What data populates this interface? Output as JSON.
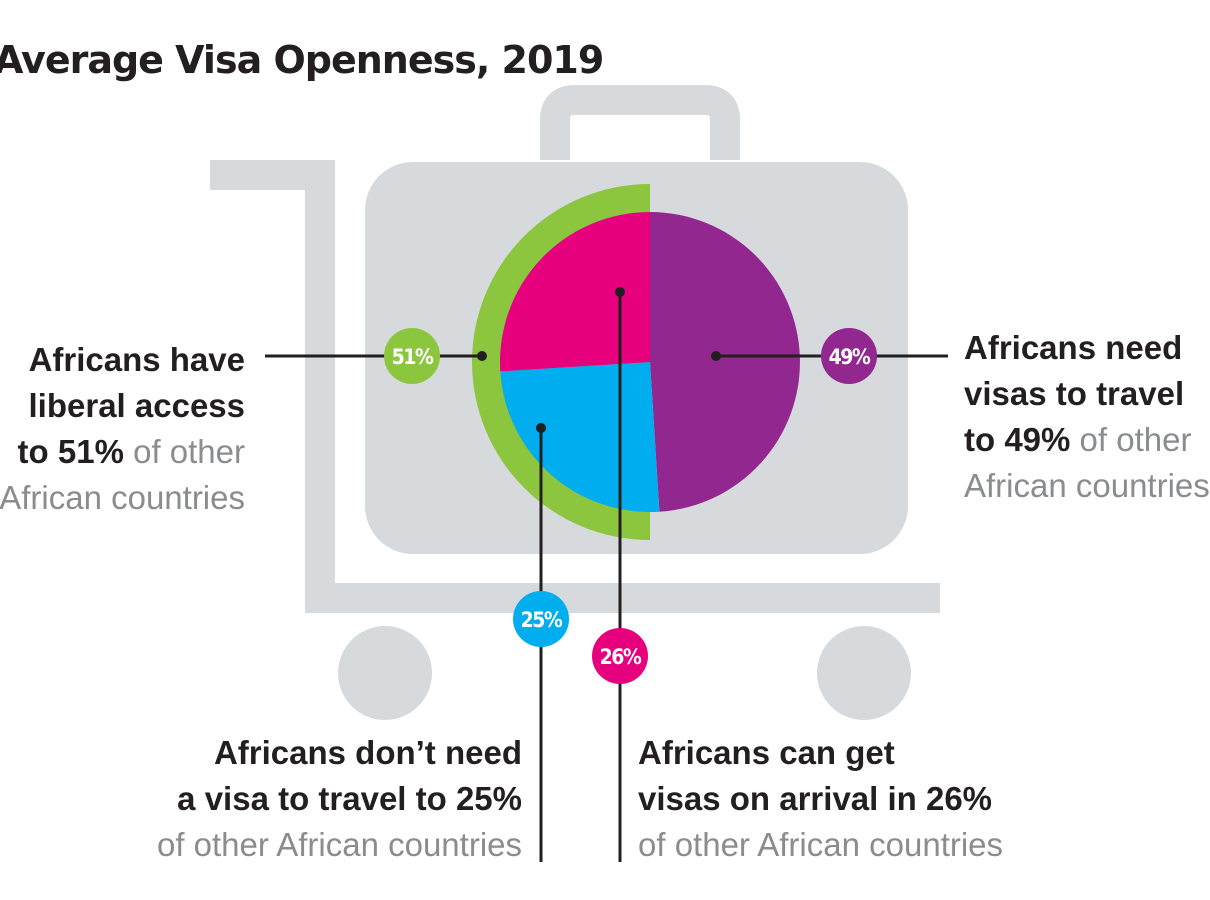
{
  "title": "Average Visa Openness, 2019",
  "colors": {
    "liberal_access": "#8cc63f",
    "visa_on_arrival": "#e6007e",
    "no_visa": "#00aeef",
    "visa_required": "#92278f",
    "suitcase": "#d6dadd"
  },
  "icons": {
    "background": "luggage-trolley-icon"
  },
  "chart_data": {
    "type": "pie",
    "title": "Average Visa Openness, 2019",
    "slices": [
      {
        "key": "visa_required",
        "value": 49,
        "bubble": "49%",
        "color": "#92278f"
      },
      {
        "key": "no_visa",
        "value": 25,
        "bubble": "25%",
        "color": "#00aeef"
      },
      {
        "key": "visa_on_arrival",
        "value": 26,
        "bubble": "26%",
        "color": "#e6007e"
      }
    ],
    "outer_arc": {
      "key": "liberal_access",
      "value": 51,
      "bubble": "51%",
      "color": "#8cc63f"
    }
  },
  "labels": {
    "liberal": {
      "bold1": "Africans have",
      "bold2": "liberal access",
      "bold3": "to 51%",
      "light3": " of other",
      "light4": "African countries"
    },
    "need_visa": {
      "bold1": "Africans need",
      "bold2": "visas to travel",
      "bold3": "to 49%",
      "light3": " of other",
      "light4": "African countries"
    },
    "no_visa": {
      "bold1": "Africans don’t need",
      "bold2": "a visa to travel to 25%",
      "light3": "of other African countries"
    },
    "arrival": {
      "bold1": "Africans can get",
      "bold2": "visas on arrival in 26%",
      "light3": "of other African countries"
    }
  }
}
